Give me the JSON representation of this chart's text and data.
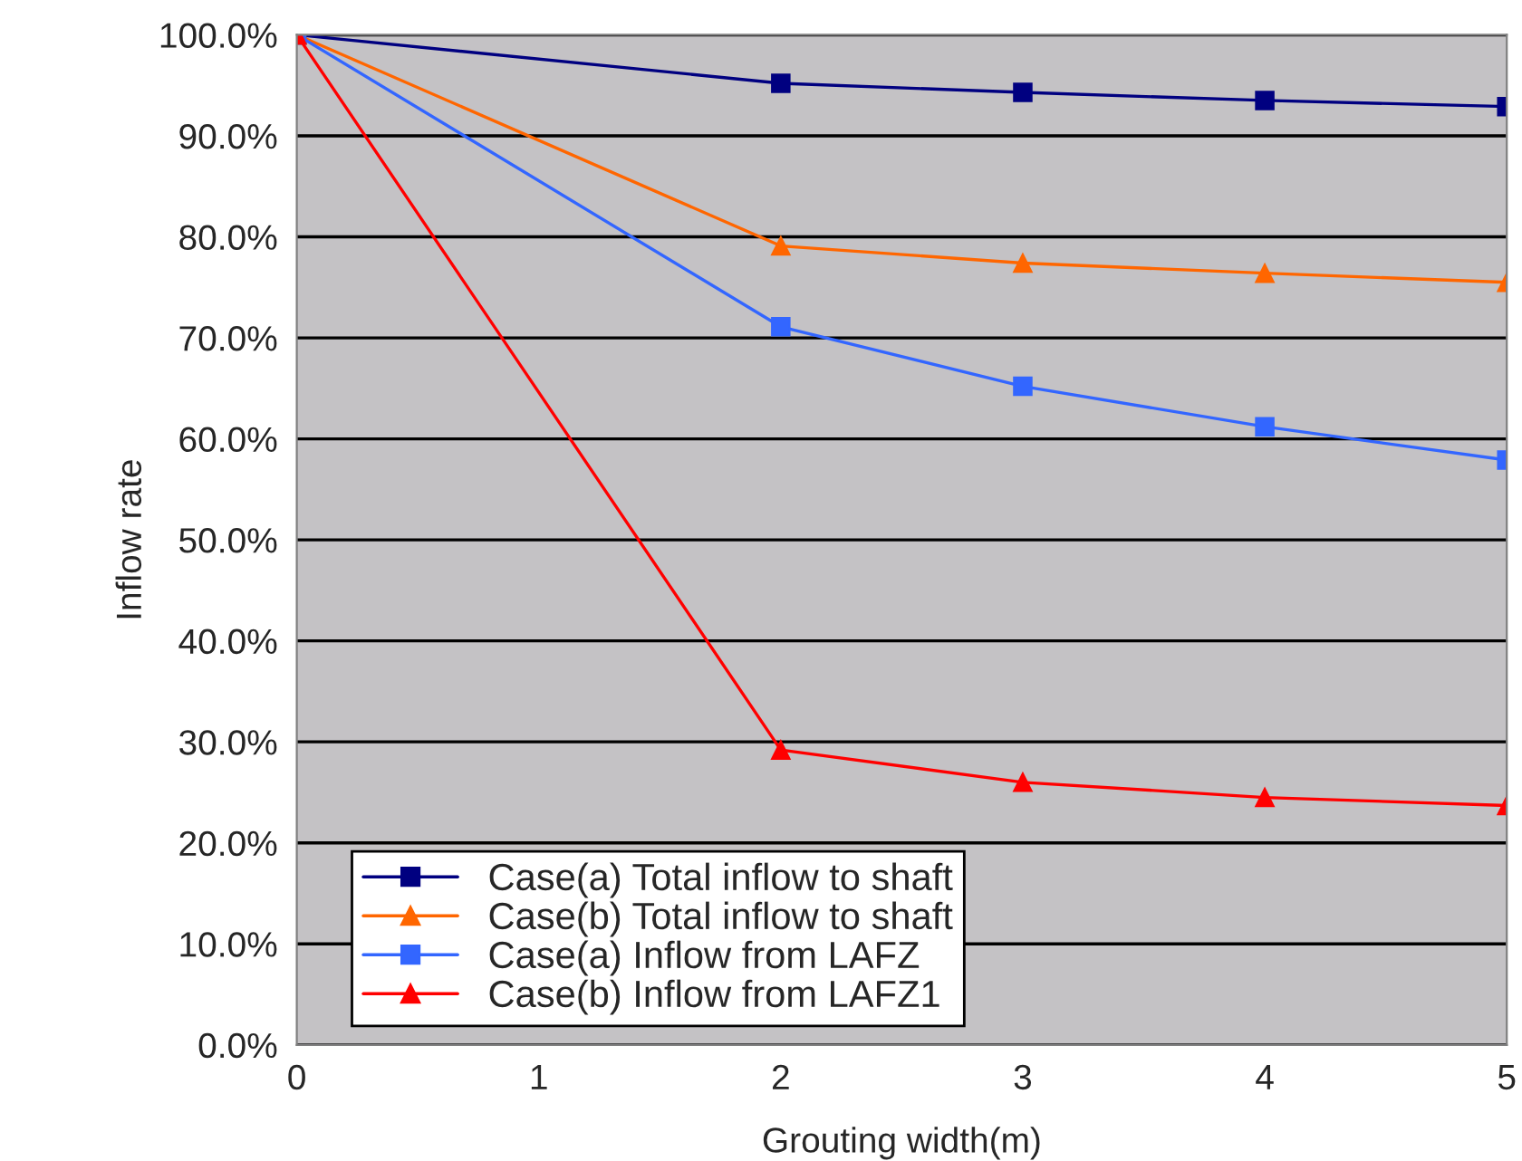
{
  "chart_data": {
    "type": "line",
    "xlabel": "Grouting width(m)",
    "ylabel": "Inflow rate",
    "x": [
      0,
      2,
      3,
      4,
      5
    ],
    "series": [
      {
        "name": "Case(a) Total inflow to shaft",
        "color": "#000080",
        "marker": "square",
        "values": [
          100,
          95.2,
          94.3,
          93.5,
          92.9
        ]
      },
      {
        "name": "Case(b) Total inflow to shaft",
        "color": "#ff6600",
        "marker": "triangle",
        "values": [
          100,
          79.1,
          77.4,
          76.4,
          75.5
        ]
      },
      {
        "name": "Case(a) Inflow from LAFZ",
        "color": "#3366ff",
        "marker": "square",
        "values": [
          100,
          71.1,
          65.2,
          61.2,
          57.9
        ]
      },
      {
        "name": "Case(b) Inflow from LAFZ1",
        "color": "#ff0000",
        "marker": "triangle",
        "values": [
          100,
          29.2,
          26.0,
          24.5,
          23.7
        ]
      }
    ],
    "xlim": [
      0,
      5
    ],
    "xticks": [
      0,
      1,
      2,
      3,
      4,
      5
    ],
    "ylim": [
      0,
      100
    ],
    "yticks": [
      {
        "value": 0,
        "label": "0.0%"
      },
      {
        "value": 10,
        "label": "10.0%"
      },
      {
        "value": 20,
        "label": "20.0%"
      },
      {
        "value": 30,
        "label": "30.0%"
      },
      {
        "value": 40,
        "label": "40.0%"
      },
      {
        "value": 50,
        "label": "50.0%"
      },
      {
        "value": 60,
        "label": "60.0%"
      },
      {
        "value": 70,
        "label": "70.0%"
      },
      {
        "value": 80,
        "label": "80.0%"
      },
      {
        "value": 90,
        "label": "90.0%"
      },
      {
        "value": 100,
        "label": "100.0%"
      }
    ],
    "grid": "y",
    "legend": "lower left"
  }
}
